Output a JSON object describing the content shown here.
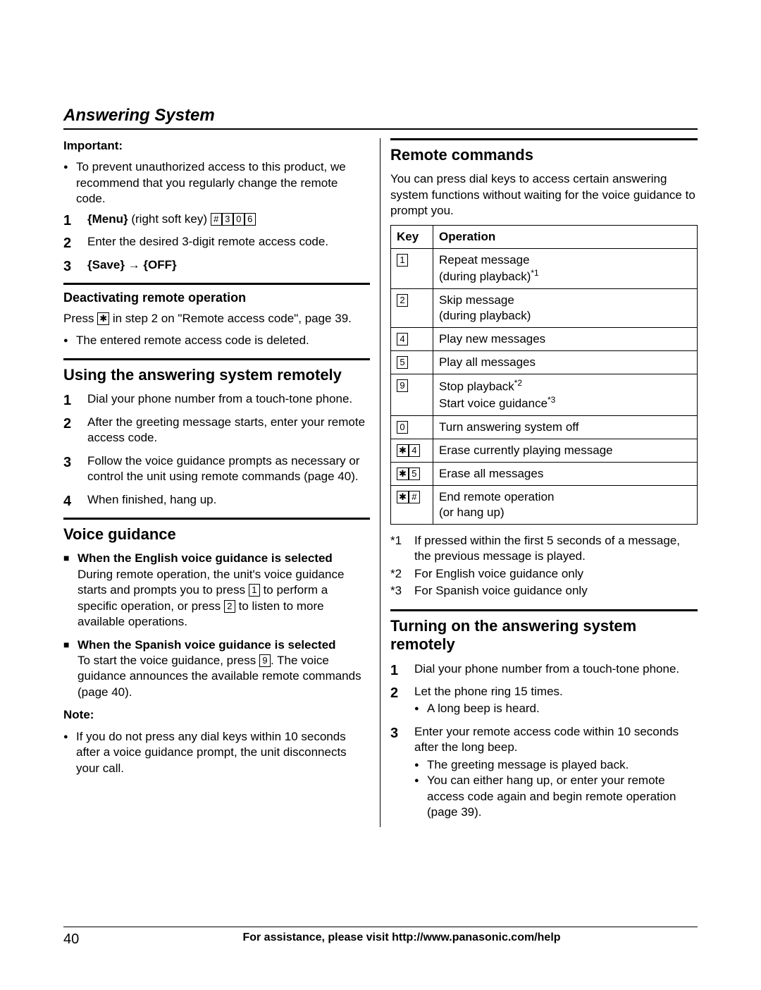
{
  "section_title": "Answering System",
  "left": {
    "important_label": "Important:",
    "important_text": "To prevent unauthorized access to this product, we recommend that you regularly change the remote code.",
    "steps1": {
      "s1_pre": "{Menu}",
      "s1_post": " (right soft key) ",
      "s1_keys": [
        "#",
        "3",
        "0",
        "6"
      ],
      "s2": "Enter the desired 3-digit remote access code.",
      "s3_a": "{Save}",
      "s3_arrow": " → ",
      "s3_b": "{OFF}"
    },
    "deact_title": "Deactivating remote operation",
    "deact_p_pre": "Press ",
    "deact_key": "✱",
    "deact_p_post": " in step 2 on \"Remote access code\", page 39.",
    "deact_bullet": "The entered remote access code is deleted.",
    "using_title": "Using the answering system remotely",
    "using_steps": [
      "Dial your phone number from a touch-tone phone.",
      "After the greeting message starts, enter your remote access code.",
      "Follow the voice guidance prompts as necessary or control the unit using remote commands (page 40).",
      "When finished, hang up."
    ],
    "vg_title": "Voice guidance",
    "vg_en_head": "When the English voice guidance is selected",
    "vg_en_body_1": "During remote operation, the unit's voice guidance starts and prompts you to press ",
    "vg_en_key1": "1",
    "vg_en_body_2": " to perform a specific operation, or press ",
    "vg_en_key2": "2",
    "vg_en_body_3": " to listen to more available operations.",
    "vg_es_head": "When the Spanish voice guidance is selected",
    "vg_es_body_1": "To start the voice guidance, press ",
    "vg_es_key": "9",
    "vg_es_body_2": ". The voice guidance announces the available remote commands (page 40).",
    "note_label": "Note:",
    "note_text": "If you do not press any dial keys within 10 seconds after a voice guidance prompt, the unit disconnects your call."
  },
  "right": {
    "rc_title": "Remote commands",
    "rc_intro": "You can press dial keys to access certain answering system functions without waiting for the voice guidance to prompt you.",
    "table": {
      "head_key": "Key",
      "head_op": "Operation",
      "rows": [
        {
          "keys": [
            "1"
          ],
          "op": "Repeat message\n(during playback)",
          "sup": "*1"
        },
        {
          "keys": [
            "2"
          ],
          "op": "Skip message\n(during playback)"
        },
        {
          "keys": [
            "4"
          ],
          "op": "Play new messages"
        },
        {
          "keys": [
            "5"
          ],
          "op": "Play all messages"
        },
        {
          "keys": [
            "9"
          ],
          "op": "Stop playback",
          "sup": "*2",
          "op2": "Start voice guidance",
          "sup2": "*3"
        },
        {
          "keys": [
            "0"
          ],
          "op": "Turn answering system off"
        },
        {
          "keys": [
            "✱",
            "4"
          ],
          "op": "Erase currently playing message"
        },
        {
          "keys": [
            "✱",
            "5"
          ],
          "op": "Erase all messages"
        },
        {
          "keys": [
            "✱",
            "#"
          ],
          "op": "End remote operation\n(or hang up)"
        }
      ]
    },
    "fn1": {
      "mark": "*1",
      "text": "If pressed within the first 5 seconds of a message, the previous message is played."
    },
    "fn2": {
      "mark": "*2",
      "text": "For English voice guidance only"
    },
    "fn3": {
      "mark": "*3",
      "text": "For Spanish voice guidance only"
    },
    "turn_title": "Turning on the answering system remotely",
    "turn_steps": {
      "s1": "Dial your phone number from a touch-tone phone.",
      "s2": "Let the phone ring 15 times.",
      "s2_b": "A long beep is heard.",
      "s3": "Enter your remote access code within 10 seconds after the long beep.",
      "s3_b1": "The greeting message is played back.",
      "s3_b2": "You can either hang up, or enter your remote access code again and begin remote operation (page 39)."
    }
  },
  "footer": {
    "page": "40",
    "text": "For assistance, please visit http://www.panasonic.com/help"
  }
}
